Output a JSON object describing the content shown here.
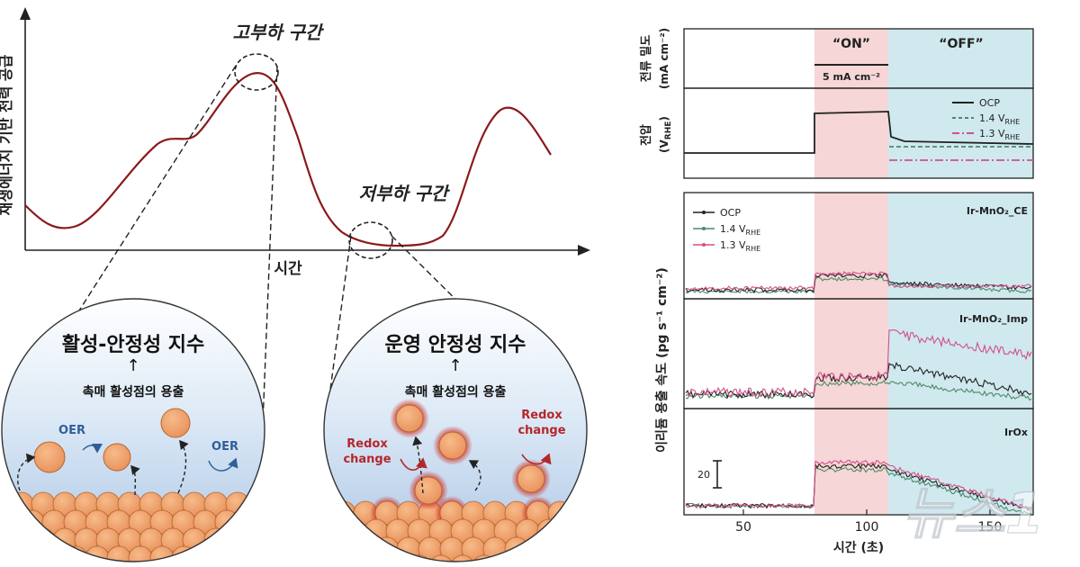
{
  "left": {
    "y_axis_label": "재생에너지 기반 전력 공급",
    "x_axis_label": "시간",
    "high_label": "고부하 구간",
    "low_label": "저부하 구간",
    "circle_left": {
      "title": "활성-안정성 지수",
      "arrow": "↑",
      "subtitle": "촉매 활성점의 용출",
      "oer_1": "OER",
      "oer_2": "OER"
    },
    "circle_right": {
      "title": "운영 안정성 지수",
      "arrow": "↑",
      "subtitle": "촉매 활성점의 용출",
      "redox_1_line1": "Redox",
      "redox_1_line2": "change",
      "redox_2_line1": "Redox",
      "redox_2_line2": "change"
    },
    "colors": {
      "curve": "#8b1a1a",
      "particle": "#f0a36b",
      "particle_edge": "#b8652e",
      "glow": "#d2332b",
      "oer": "#2f5f9a",
      "redox": "#b5262b"
    }
  },
  "right": {
    "zone_on": "“ON”",
    "zone_off": "“OFF”",
    "scale_label": "5 mA cm⁻²",
    "panel1_ylabel_l1": "전류 밀도",
    "panel1_ylabel_l2": "(mA cm⁻²)",
    "panel2_ylabel_l1": "전압",
    "panel2_ylabel_l2": "(V",
    "panel2_ylabel_sub": "RHE",
    "panel2_ylabel_end": ")",
    "panel2_legend": [
      "OCP",
      "1.4 V",
      "1.3 V"
    ],
    "legend_sub": "RHE",
    "lower_ylabel": "이리듐 용출 속도 (pg s⁻¹ cm⁻²)",
    "panel3_legend": [
      "OCP",
      "1.4 V",
      "1.3 V"
    ],
    "panel3_name": "Ir-MnO₂_CE",
    "panel4_name": "Ir-MnO₂_Imp",
    "panel5_name": "IrOx",
    "scale_bar_value": "20",
    "x_ticks": [
      "50",
      "100",
      "150"
    ],
    "x_axis_label": "시간 (초)",
    "colors": {
      "on_bg": "#f6d6d6",
      "off_bg": "#cfe9ee",
      "ocp": "#222222",
      "v14": "#4e8a68",
      "v13": "#d4508a"
    }
  },
  "watermark": "뉴스1"
}
